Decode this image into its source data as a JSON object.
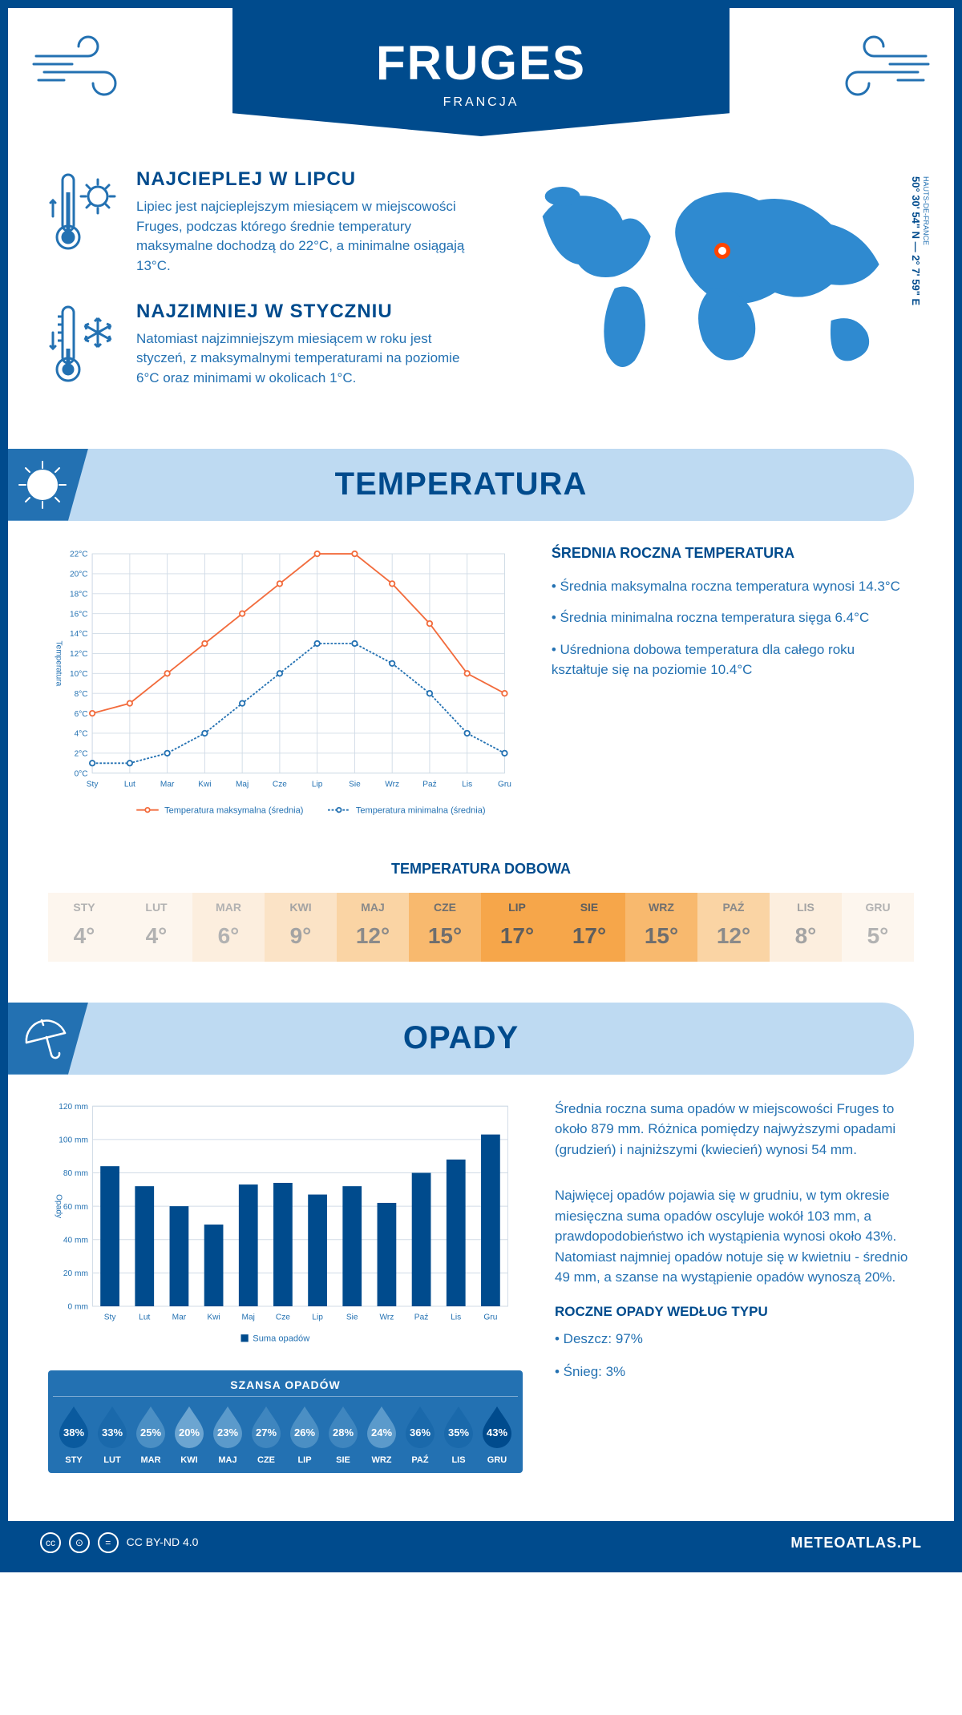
{
  "header": {
    "city": "FRUGES",
    "country": "FRANCJA"
  },
  "coords": {
    "lat": "50° 30' 54\" N — 2° 7' 59\" E",
    "region": "HAUTS-DE-FRANCE"
  },
  "intro": {
    "hot": {
      "title": "NAJCIEPLEJ W LIPCU",
      "text": "Lipiec jest najcieplejszym miesiącem w miejscowości Fruges, podczas którego średnie temperatury maksymalne dochodzą do 22°C, a minimalne osiągają 13°C."
    },
    "cold": {
      "title": "NAJZIMNIEJ W STYCZNIU",
      "text": "Natomiast najzimniejszym miesiącem w roku jest styczeń, z maksymalnymi temperaturami na poziomie 6°C oraz minimami w okolicach 1°C."
    }
  },
  "temp_section": {
    "header": "TEMPERATURA",
    "side_title": "ŚREDNIA ROCZNA TEMPERATURA",
    "side_bul1": "• Średnia maksymalna roczna temperatura wynosi 14.3°C",
    "side_bul2": "• Średnia minimalna roczna temperatura sięga 6.4°C",
    "side_bul3": "• Uśredniona dobowa temperatura dla całego roku kształtuje się na poziomie 10.4°C"
  },
  "months": [
    "Sty",
    "Lut",
    "Mar",
    "Kwi",
    "Maj",
    "Cze",
    "Lip",
    "Sie",
    "Wrz",
    "Paź",
    "Lis",
    "Gru"
  ],
  "months_upper": [
    "STY",
    "LUT",
    "MAR",
    "KWI",
    "MAJ",
    "CZE",
    "LIP",
    "SIE",
    "WRZ",
    "PAŹ",
    "LIS",
    "GRU"
  ],
  "temp_chart": {
    "ylabel": "Temperatura",
    "ymin": 0,
    "ymax": 22,
    "ytick": 2,
    "max_series": [
      6,
      7,
      10,
      13,
      16,
      19,
      22,
      22,
      19,
      15,
      10,
      8
    ],
    "min_series": [
      1,
      1,
      2,
      4,
      7,
      10,
      13,
      13,
      11,
      8,
      4,
      2
    ],
    "colors": {
      "max": "#f26b3c",
      "min": "#2371b2",
      "grid": "#d0dbe6"
    },
    "legend_max": "Temperatura maksymalna (średnia)",
    "legend_min": "Temperatura minimalna (średnia)"
  },
  "daily": {
    "title": "TEMPERATURA DOBOWA",
    "values": [
      4,
      4,
      6,
      9,
      12,
      15,
      17,
      17,
      15,
      12,
      8,
      5
    ],
    "cell_colors": [
      "#fdf6ee",
      "#fdf6ee",
      "#fceede",
      "#fbe3c6",
      "#fad4a4",
      "#f8b96e",
      "#f6a64a",
      "#f6a64a",
      "#f8b96e",
      "#fad4a4",
      "#fceede",
      "#fdf6ee"
    ],
    "text_colors": [
      "#b2b2b2",
      "#b2b2b2",
      "#b2b2b2",
      "#a3a3a3",
      "#8a8a8a",
      "#6e6e6e",
      "#5e5e5e",
      "#5e5e5e",
      "#6e6e6e",
      "#8a8a8a",
      "#a3a3a3",
      "#b2b2b2"
    ]
  },
  "precip_section": {
    "header": "OPADY",
    "para1": "Średnia roczna suma opadów w miejscowości Fruges to około 879 mm. Różnica pomiędzy najwyższymi opadami (grudzień) i najniższymi (kwiecień) wynosi 54 mm.",
    "para2": "Najwięcej opadów pojawia się w grudniu, w tym okresie miesięczna suma opadów oscyluje wokół 103 mm, a prawdopodobieństwo ich wystąpienia wynosi około 43%. Natomiast najmniej opadów notuje się w kwietniu - średnio 49 mm, a szanse na wystąpienie opadów wynoszą 20%."
  },
  "precip_chart": {
    "ylabel": "Opady",
    "ymin": 0,
    "ymax": 120,
    "ytick": 20,
    "values": [
      84,
      72,
      60,
      49,
      73,
      74,
      67,
      72,
      62,
      80,
      88,
      103
    ],
    "bar_color": "#004b8d",
    "legend": "Suma opadów"
  },
  "chance": {
    "title": "SZANSA OPADÓW",
    "values": [
      38,
      33,
      25,
      20,
      23,
      27,
      26,
      28,
      24,
      36,
      35,
      43
    ],
    "drop_colors": [
      "#0a5a9e",
      "#1a69ab",
      "#4b8fc4",
      "#6ca5d1",
      "#5b9acb",
      "#3f86bf",
      "#4b8fc4",
      "#3f86bf",
      "#5b9acb",
      "#1a69ab",
      "#1a69ab",
      "#004b8d"
    ]
  },
  "precip_type": {
    "title": "ROCZNE OPADY WEDŁUG TYPU",
    "rain": "• Deszcz: 97%",
    "snow": "• Śnieg: 3%"
  },
  "footer": {
    "license": "CC BY-ND 4.0",
    "site": "METEOATLAS.PL"
  }
}
